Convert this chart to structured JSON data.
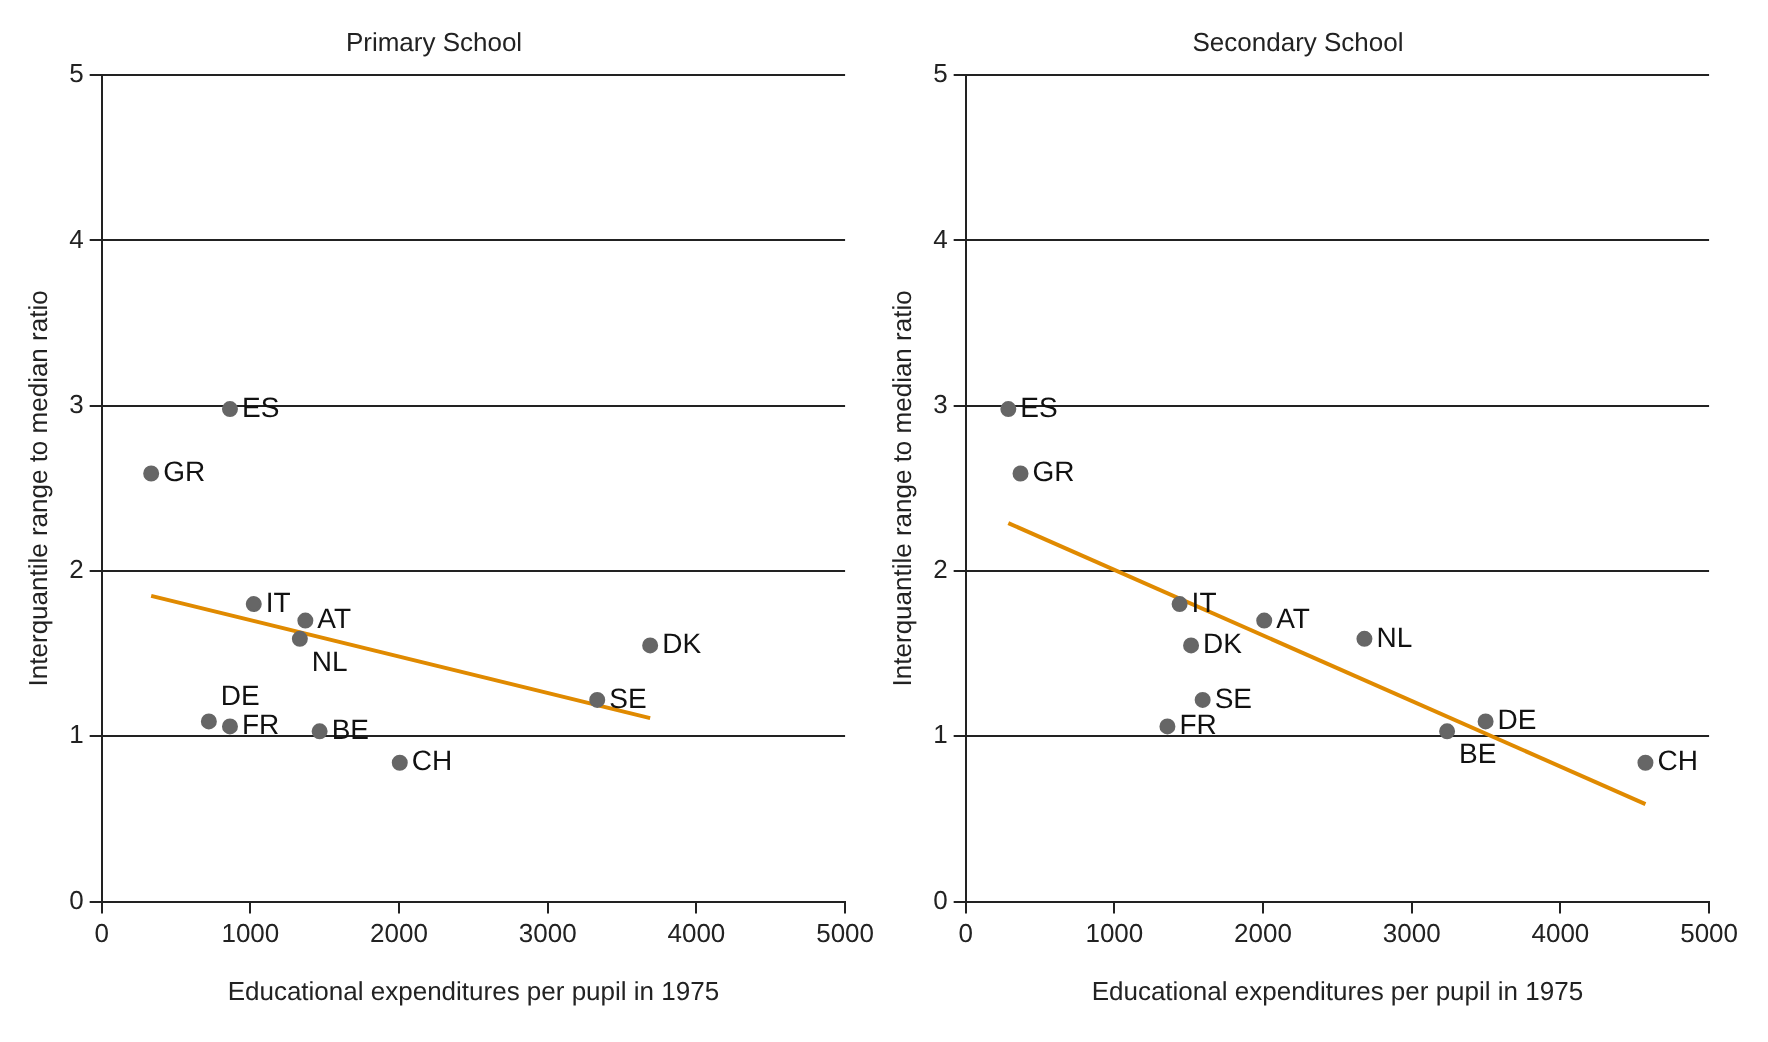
{
  "chart_data": [
    {
      "type": "scatter",
      "title": "Primary School",
      "xlabel": "Educational expenditures per pupil in 1975",
      "ylabel": "Interquantile range to median ratio",
      "xlim": [
        0,
        5000
      ],
      "xticks": [
        0,
        1000,
        2000,
        3000,
        4000,
        5000
      ],
      "ylim": [
        0,
        5
      ],
      "yticks": [
        0,
        1,
        2,
        3,
        4,
        5
      ],
      "grid": "y",
      "legend": false,
      "series": [
        {
          "type": "scatter",
          "marker": "circle",
          "color": "#666666",
          "x": [
            863,
            333,
            1023,
            1370,
            1333,
            3689,
            3333,
            721,
            863,
            1466,
            2005
          ],
          "values": [
            2.98,
            2.59,
            1.8,
            1.7,
            1.59,
            1.55,
            1.22,
            1.09,
            1.06,
            1.03,
            0.84
          ]
        },
        {
          "type": "line",
          "marker": "none",
          "color": "#e08a00",
          "x": [
            333,
            3689
          ],
          "values": [
            1.85,
            1.11
          ]
        }
      ],
      "annotations": [
        {
          "text": "ES",
          "x": 863,
          "y": 2.98
        },
        {
          "text": "GR",
          "x": 333,
          "y": 2.59
        },
        {
          "text": "IT",
          "x": 1023,
          "y": 1.8
        },
        {
          "text": "AT",
          "x": 1370,
          "y": 1.7
        },
        {
          "text": "NL",
          "x": 1333,
          "y": 1.59
        },
        {
          "text": "DK",
          "x": 3689,
          "y": 1.55
        },
        {
          "text": "SE",
          "x": 3333,
          "y": 1.22
        },
        {
          "text": "DE",
          "x": 721,
          "y": 1.09
        },
        {
          "text": "FR",
          "x": 863,
          "y": 1.06
        },
        {
          "text": "BE",
          "x": 1466,
          "y": 1.03
        },
        {
          "text": "CH",
          "x": 2005,
          "y": 0.84
        }
      ]
    },
    {
      "type": "scatter",
      "title": "Secondary School",
      "xlabel": "Educational expenditures per pupil in 1975",
      "ylabel": "Interquantile range to median ratio",
      "xlim": [
        0,
        5000
      ],
      "xticks": [
        0,
        1000,
        2000,
        3000,
        4000,
        5000
      ],
      "ylim": [
        0,
        5
      ],
      "yticks": [
        0,
        1,
        2,
        3,
        4,
        5
      ],
      "grid": "y",
      "legend": false,
      "series": [
        {
          "type": "scatter",
          "marker": "circle",
          "color": "#666666",
          "x": [
            287,
            369,
            1439,
            2008,
            2682,
            1516,
            1594,
            1357,
            3238,
            3497,
            4572
          ],
          "values": [
            2.98,
            2.59,
            1.8,
            1.7,
            1.59,
            1.55,
            1.22,
            1.06,
            1.03,
            1.09,
            0.84
          ]
        },
        {
          "type": "line",
          "marker": "none",
          "color": "#e08a00",
          "x": [
            287,
            4572
          ],
          "values": [
            2.29,
            0.59
          ]
        }
      ],
      "annotations": [
        {
          "text": "ES",
          "x": 287,
          "y": 2.98
        },
        {
          "text": "GR",
          "x": 369,
          "y": 2.59
        },
        {
          "text": "IT",
          "x": 1439,
          "y": 1.8
        },
        {
          "text": "AT",
          "x": 2008,
          "y": 1.7
        },
        {
          "text": "NL",
          "x": 2682,
          "y": 1.59
        },
        {
          "text": "DK",
          "x": 1516,
          "y": 1.55
        },
        {
          "text": "SE",
          "x": 1594,
          "y": 1.22
        },
        {
          "text": "FR",
          "x": 1357,
          "y": 1.06
        },
        {
          "text": "BE",
          "x": 3238,
          "y": 1.03
        },
        {
          "text": "DE",
          "x": 3497,
          "y": 1.09
        },
        {
          "text": "CH",
          "x": 4572,
          "y": 0.84
        }
      ]
    }
  ]
}
